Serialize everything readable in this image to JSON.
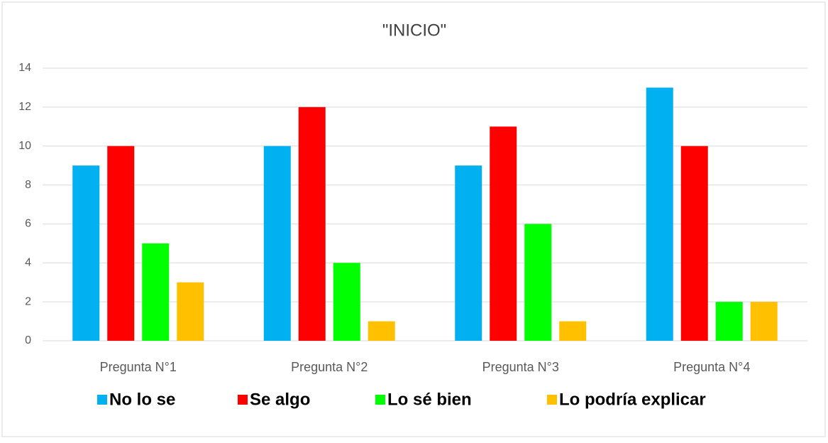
{
  "chart_data": {
    "type": "bar",
    "title": "\"INICIO\"",
    "categories": [
      "Pregunta N°1",
      "Pregunta N°2",
      "Pregunta N°3",
      "Pregunta N°4"
    ],
    "series": [
      {
        "name": "No lo se",
        "color": "#00b0f0",
        "values": [
          9,
          10,
          9,
          13
        ]
      },
      {
        "name": "Se algo",
        "color": "#ff0000",
        "values": [
          10,
          12,
          11,
          10
        ]
      },
      {
        "name": "Lo sé bien",
        "color": "#00ff00",
        "values": [
          5,
          4,
          6,
          2
        ]
      },
      {
        "name": "Lo podría explicar",
        "color": "#ffc000",
        "values": [
          3,
          1,
          1,
          2
        ]
      }
    ],
    "ylim": [
      0,
      14
    ],
    "yticks": [
      0,
      2,
      4,
      6,
      8,
      10,
      12,
      14
    ],
    "grid": true,
    "legend": "bottom"
  }
}
